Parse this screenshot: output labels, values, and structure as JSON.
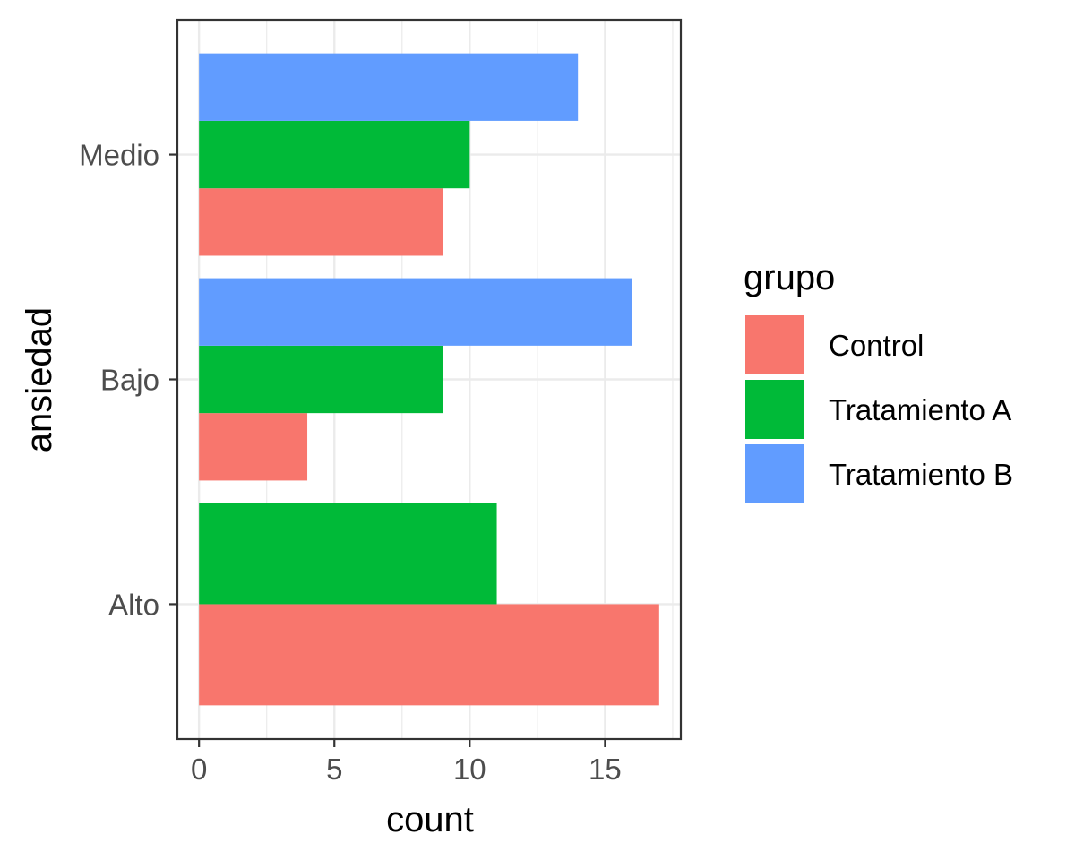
{
  "chart_data": {
    "type": "bar",
    "orientation": "horizontal",
    "position": "dodge",
    "categories": [
      "Alto",
      "Bajo",
      "Medio"
    ],
    "series": [
      {
        "name": "Control",
        "color": "#F8766D",
        "values": [
          17,
          4,
          9
        ]
      },
      {
        "name": "Tratamiento A",
        "color": "#00BA38",
        "values": [
          11,
          9,
          10
        ]
      },
      {
        "name": "Tratamiento B",
        "color": "#619CFF",
        "values": [
          0,
          16,
          14
        ]
      }
    ],
    "xlabel": "count",
    "ylabel": "ansiedad",
    "xlim": [
      -0.8,
      17.8
    ],
    "xticks": [
      "0",
      "5",
      "10",
      "15"
    ],
    "legend": {
      "title": "grupo",
      "placement": "right"
    },
    "grid": true,
    "theme": "bw"
  }
}
